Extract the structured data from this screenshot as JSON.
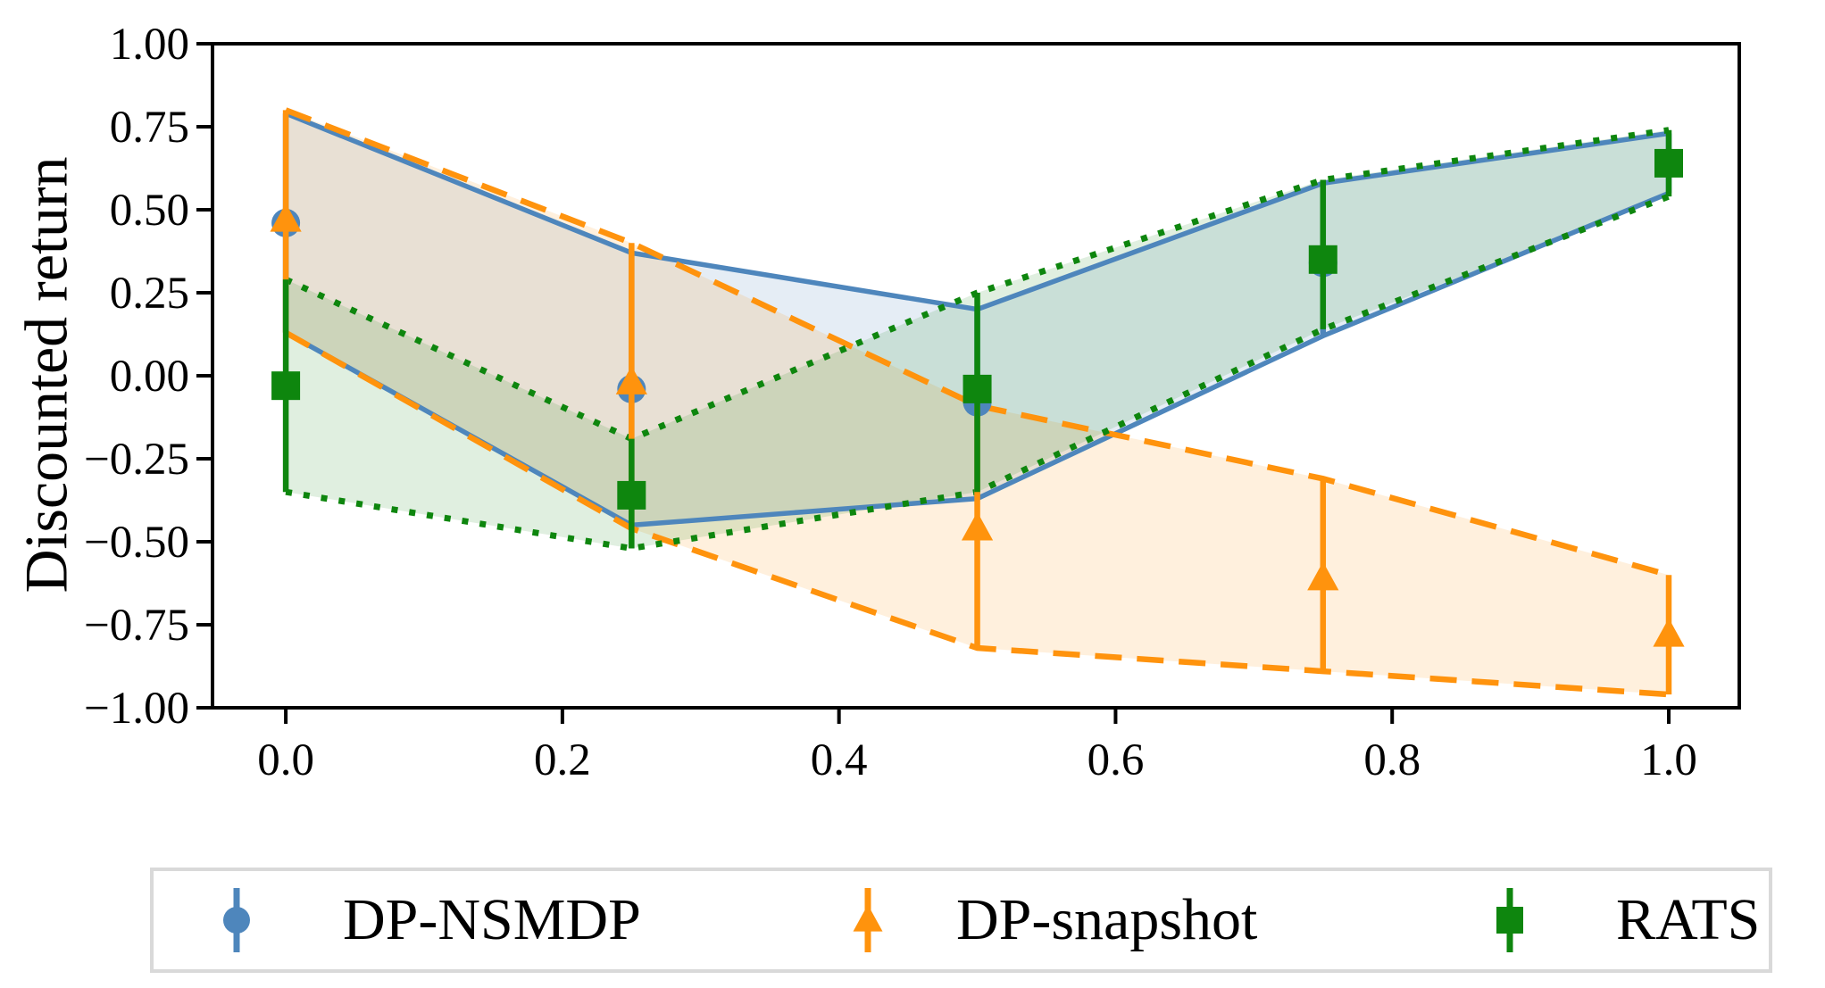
{
  "chart_data": {
    "type": "line",
    "title": "",
    "xlabel": "",
    "ylabel": "Discounted return",
    "xlim": [
      -0.053,
      1.051
    ],
    "ylim": [
      -1.0,
      1.0
    ],
    "grid": false,
    "legend_position": "below",
    "xticks": [
      {
        "v": 0.0,
        "label": "0.0"
      },
      {
        "v": 0.2,
        "label": "0.2"
      },
      {
        "v": 0.4,
        "label": "0.4"
      },
      {
        "v": 0.6,
        "label": "0.6"
      },
      {
        "v": 0.8,
        "label": "0.8"
      },
      {
        "v": 1.0,
        "label": "1.0"
      }
    ],
    "yticks": [
      {
        "v": 1.0,
        "label": "1.00"
      },
      {
        "v": 0.75,
        "label": "0.75"
      },
      {
        "v": 0.5,
        "label": "0.50"
      },
      {
        "v": 0.25,
        "label": "0.25"
      },
      {
        "v": 0.0,
        "label": "0.00"
      },
      {
        "v": -0.25,
        "label": "−0.25"
      },
      {
        "v": -0.5,
        "label": "−0.50"
      },
      {
        "v": -0.75,
        "label": "−0.75"
      },
      {
        "v": -1.0,
        "label": "−1.00"
      }
    ],
    "series": [
      {
        "name": "DP-NSMDP",
        "color": "#4E86BC",
        "marker": "circle",
        "linestyle": "solid",
        "band_alpha": 0.15,
        "points": [
          {
            "x": 0.0,
            "y": 0.46,
            "lo": 0.13,
            "hi": 0.79
          },
          {
            "x": 0.25,
            "y": -0.04,
            "lo": -0.45,
            "hi": 0.37
          },
          {
            "x": 0.5,
            "y": -0.08,
            "lo": -0.37,
            "hi": 0.2
          },
          {
            "x": 0.75,
            "y": 0.34,
            "lo": 0.12,
            "hi": 0.58
          },
          {
            "x": 1.0,
            "y": 0.64,
            "lo": 0.55,
            "hi": 0.73
          }
        ]
      },
      {
        "name": "DP-snapshot",
        "color": "#FF930D",
        "marker": "triangle",
        "linestyle": "dashed",
        "band_alpha": 0.14,
        "points": [
          {
            "x": 0.0,
            "y": 0.47,
            "lo": 0.13,
            "hi": 0.8
          },
          {
            "x": 0.25,
            "y": -0.02,
            "lo": -0.46,
            "hi": 0.4
          },
          {
            "x": 0.5,
            "y": -0.46,
            "lo": -0.82,
            "hi": -0.09
          },
          {
            "x": 0.75,
            "y": -0.61,
            "lo": -0.89,
            "hi": -0.31
          },
          {
            "x": 1.0,
            "y": -0.78,
            "lo": -0.96,
            "hi": -0.6
          }
        ]
      },
      {
        "name": "RATS",
        "color": "#0E860E",
        "marker": "square",
        "linestyle": "dotted",
        "band_alpha": 0.13,
        "points": [
          {
            "x": 0.0,
            "y": -0.03,
            "lo": -0.35,
            "hi": 0.29
          },
          {
            "x": 0.25,
            "y": -0.36,
            "lo": -0.52,
            "hi": -0.19
          },
          {
            "x": 0.5,
            "y": -0.04,
            "lo": -0.35,
            "hi": 0.25
          },
          {
            "x": 0.75,
            "y": 0.35,
            "lo": 0.14,
            "hi": 0.59
          },
          {
            "x": 1.0,
            "y": 0.64,
            "lo": 0.54,
            "hi": 0.74
          }
        ]
      }
    ]
  }
}
